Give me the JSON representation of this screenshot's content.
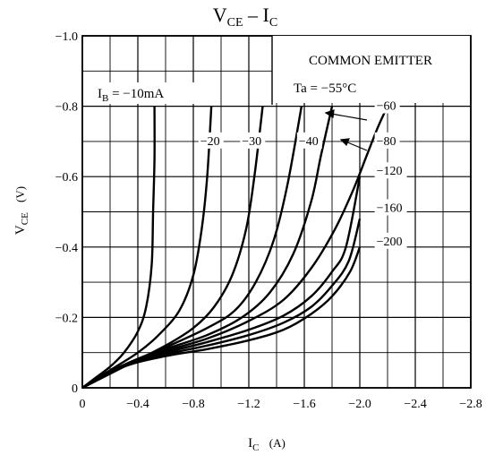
{
  "chart_data": {
    "type": "line",
    "title": {
      "main": "V",
      "sub": "CE",
      "dash": "–",
      "main2": "I",
      "sub2": "C"
    },
    "xlabel": {
      "main": "I",
      "sub": "C",
      "unit": "(A)"
    },
    "ylabel": {
      "main": "V",
      "sub": "CE",
      "unit": "(V)"
    },
    "xlim": [
      0,
      2.8
    ],
    "ylim": [
      0,
      -1.0
    ],
    "x_ticks": [
      0,
      -0.4,
      -0.8,
      -1.2,
      -1.6,
      -2.0,
      -2.4,
      -2.8
    ],
    "x_tick_labels": [
      "0",
      "−0.4",
      "−0.8",
      "−1.2",
      "−1.6",
      "−2.0",
      "−2.4",
      "−2.8"
    ],
    "y_ticks": [
      0,
      -0.2,
      -0.4,
      -0.6,
      -0.8,
      -1.0
    ],
    "y_tick_labels": [
      "0",
      "−0.2",
      "−0.4",
      "−0.6",
      "−0.8",
      "−1.0"
    ],
    "grid": true,
    "info_box": {
      "line1": "COMMON EMITTER",
      "line2": "Ta = −55°C"
    },
    "ib_label": {
      "prefix": "I",
      "sub": "B",
      "rest": " = −10mA"
    },
    "series": [
      {
        "name": "−10mA",
        "label": "I_B = −10mA",
        "points": [
          [
            0,
            0
          ],
          [
            0.1,
            -0.03
          ],
          [
            0.2,
            -0.06
          ],
          [
            0.3,
            -0.1
          ],
          [
            0.4,
            -0.16
          ],
          [
            0.46,
            -0.23
          ],
          [
            0.5,
            -0.35
          ],
          [
            0.51,
            -0.5
          ],
          [
            0.52,
            -0.65
          ],
          [
            0.52,
            -0.8
          ]
        ]
      },
      {
        "name": "−20",
        "label": "−20",
        "points": [
          [
            0,
            0
          ],
          [
            0.2,
            -0.05
          ],
          [
            0.4,
            -0.1
          ],
          [
            0.55,
            -0.15
          ],
          [
            0.7,
            -0.22
          ],
          [
            0.8,
            -0.32
          ],
          [
            0.86,
            -0.45
          ],
          [
            0.9,
            -0.6
          ],
          [
            0.93,
            -0.8
          ]
        ]
      },
      {
        "name": "−30",
        "label": "−30",
        "points": [
          [
            0,
            0
          ],
          [
            0.3,
            -0.06
          ],
          [
            0.6,
            -0.12
          ],
          [
            0.8,
            -0.17
          ],
          [
            0.95,
            -0.23
          ],
          [
            1.08,
            -0.32
          ],
          [
            1.18,
            -0.45
          ],
          [
            1.24,
            -0.6
          ],
          [
            1.3,
            -0.8
          ]
        ]
      },
      {
        "name": "−40",
        "label": "−40",
        "points": [
          [
            0,
            0
          ],
          [
            0.3,
            -0.065
          ],
          [
            0.6,
            -0.115
          ],
          [
            0.9,
            -0.17
          ],
          [
            1.1,
            -0.22
          ],
          [
            1.25,
            -0.3
          ],
          [
            1.38,
            -0.42
          ],
          [
            1.48,
            -0.58
          ],
          [
            1.58,
            -0.8
          ]
        ]
      },
      {
        "name": "−60",
        "label": "−60",
        "points": [
          [
            0,
            0
          ],
          [
            0.3,
            -0.065
          ],
          [
            0.6,
            -0.11
          ],
          [
            0.9,
            -0.15
          ],
          [
            1.15,
            -0.2
          ],
          [
            1.35,
            -0.27
          ],
          [
            1.52,
            -0.38
          ],
          [
            1.65,
            -0.53
          ],
          [
            1.72,
            -0.66
          ],
          [
            1.8,
            -0.8
          ]
        ]
      },
      {
        "name": "−80",
        "label": "−80",
        "points": [
          [
            0,
            0
          ],
          [
            0.3,
            -0.065
          ],
          [
            0.6,
            -0.105
          ],
          [
            0.9,
            -0.14
          ],
          [
            1.2,
            -0.19
          ],
          [
            1.45,
            -0.25
          ],
          [
            1.65,
            -0.34
          ],
          [
            1.82,
            -0.45
          ],
          [
            1.95,
            -0.56
          ],
          [
            2.05,
            -0.66
          ],
          [
            2.13,
            -0.74
          ],
          [
            2.2,
            -0.8
          ]
        ]
      },
      {
        "name": "−120",
        "label": "−120",
        "points": [
          [
            0,
            0
          ],
          [
            0.3,
            -0.065
          ],
          [
            0.6,
            -0.1
          ],
          [
            0.9,
            -0.13
          ],
          [
            1.2,
            -0.165
          ],
          [
            1.45,
            -0.205
          ],
          [
            1.65,
            -0.26
          ],
          [
            1.8,
            -0.33
          ],
          [
            1.9,
            -0.4
          ],
          [
            2.0,
            -0.6
          ]
        ]
      },
      {
        "name": "−160",
        "label": "−160",
        "points": [
          [
            0,
            0
          ],
          [
            0.3,
            -0.062
          ],
          [
            0.6,
            -0.095
          ],
          [
            0.9,
            -0.12
          ],
          [
            1.2,
            -0.15
          ],
          [
            1.45,
            -0.185
          ],
          [
            1.65,
            -0.23
          ],
          [
            1.8,
            -0.29
          ],
          [
            1.92,
            -0.36
          ],
          [
            2.0,
            -0.48
          ]
        ]
      },
      {
        "name": "−200",
        "label": "−200",
        "points": [
          [
            0,
            0
          ],
          [
            0.3,
            -0.06
          ],
          [
            0.6,
            -0.09
          ],
          [
            0.9,
            -0.11
          ],
          [
            1.2,
            -0.135
          ],
          [
            1.45,
            -0.165
          ],
          [
            1.65,
            -0.21
          ],
          [
            1.8,
            -0.26
          ],
          [
            1.93,
            -0.33
          ],
          [
            2.0,
            -0.4
          ]
        ]
      }
    ],
    "series_label_positions": [
      {
        "name": "−20",
        "x": 0.85,
        "y": -0.69
      },
      {
        "name": "−30",
        "x": 1.15,
        "y": -0.69
      },
      {
        "name": "−40",
        "x": 1.56,
        "y": -0.69
      },
      {
        "name": "−60",
        "x": 2.12,
        "y": -0.79
      },
      {
        "name": "−80",
        "x": 2.12,
        "y": -0.69
      },
      {
        "name": "−120",
        "x": 2.12,
        "y": -0.605
      },
      {
        "name": "−160",
        "x": 2.12,
        "y": -0.5
      },
      {
        "name": "−200",
        "x": 2.12,
        "y": -0.405
      }
    ]
  }
}
